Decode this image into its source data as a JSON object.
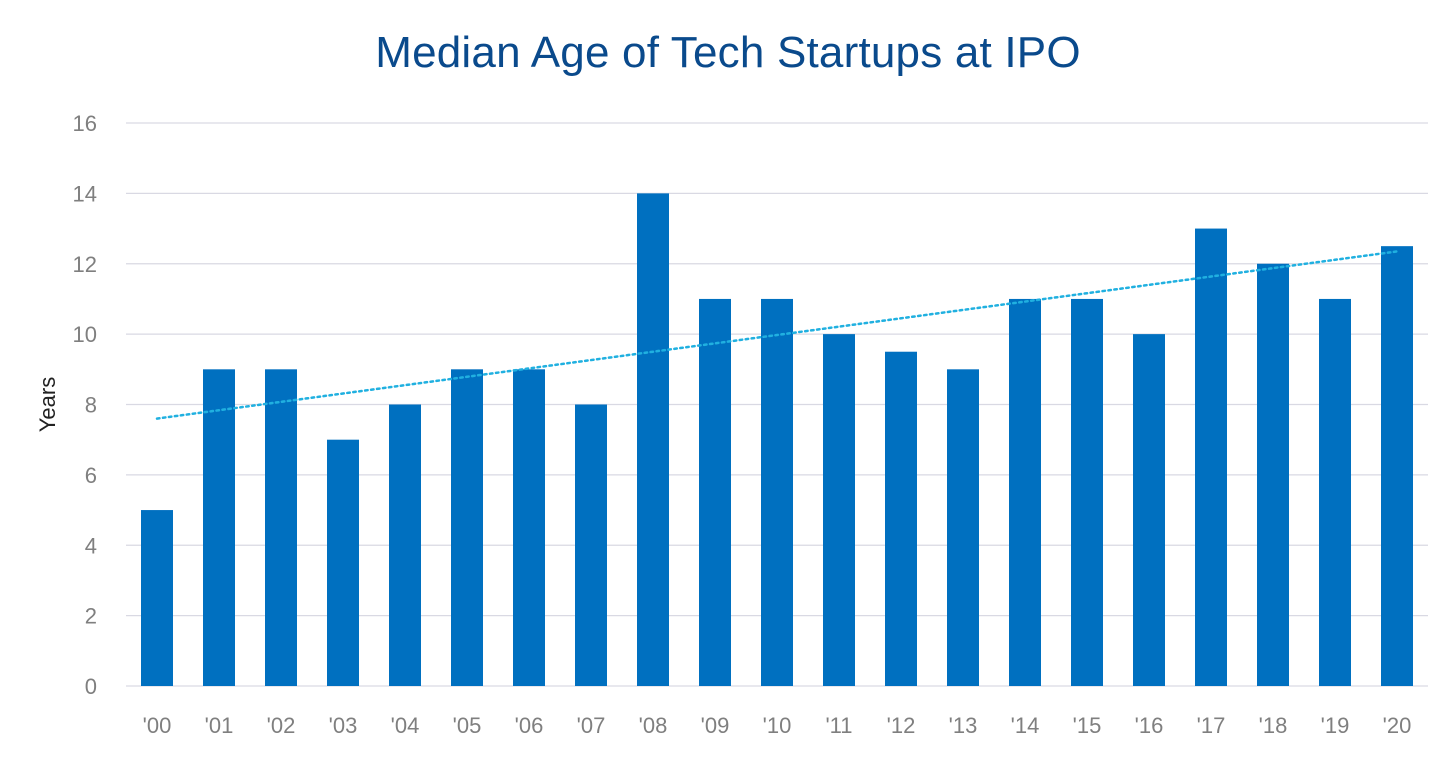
{
  "chart_data": {
    "type": "bar",
    "title": "Median Age of Tech Startups at IPO",
    "xlabel": "",
    "ylabel": "Years",
    "categories": [
      "'00",
      "'01",
      "'02",
      "'03",
      "'04",
      "'05",
      "'06",
      "'07",
      "'08",
      "'09",
      "'10",
      "'11",
      "'12",
      "'13",
      "'14",
      "'15",
      "'16",
      "'17",
      "'18",
      "'19",
      "'20"
    ],
    "values": [
      5,
      9,
      9,
      7,
      8,
      9,
      9,
      8,
      14,
      11,
      11,
      10,
      9.5,
      9,
      11,
      11,
      10,
      13,
      12,
      11,
      12.5
    ],
    "trendline": {
      "type": "linear",
      "style": "dotted",
      "start_value": 7.6,
      "end_value": 12.35
    },
    "ylim": [
      0,
      16
    ],
    "yticks": [
      0,
      2,
      4,
      6,
      8,
      10,
      12,
      14,
      16
    ],
    "grid": true,
    "legend": "none",
    "colors": {
      "bar": "#0070c0",
      "trendline": "#20b0e0",
      "title": "#0a4a8c",
      "grid": "#d9d9e3",
      "tick_text": "#7f7f7f",
      "axis_text": "#222222"
    }
  }
}
